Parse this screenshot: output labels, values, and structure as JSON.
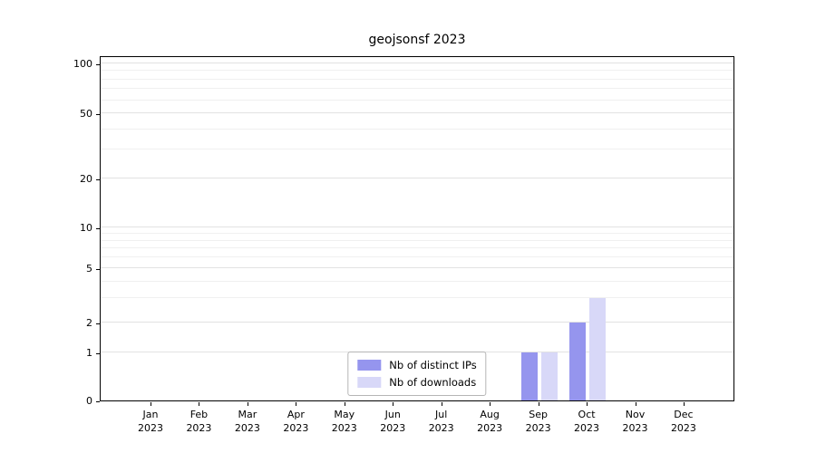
{
  "title": "geojsonsf 2023",
  "chart_data": {
    "type": "bar",
    "title": "geojsonsf 2023",
    "categories": [
      "Jan 2023",
      "Feb 2023",
      "Mar 2023",
      "Apr 2023",
      "May 2023",
      "Jun 2023",
      "Jul 2023",
      "Aug 2023",
      "Sep 2023",
      "Oct 2023",
      "Nov 2023",
      "Dec 2023"
    ],
    "series": [
      {
        "name": "Nb of distinct IPs",
        "color": "#9595ee",
        "values": [
          0,
          0,
          0,
          0,
          0,
          0,
          0,
          0,
          1,
          2,
          0,
          0
        ]
      },
      {
        "name": "Nb of downloads",
        "color": "#d8d8f8",
        "values": [
          0,
          0,
          0,
          0,
          0,
          0,
          0,
          0,
          1,
          3,
          0,
          0
        ]
      }
    ],
    "xlabel": "",
    "ylabel": "",
    "yscale": "symlog",
    "yticks": [
      0,
      1,
      2,
      5,
      10,
      20,
      50,
      100
    ],
    "ylim": [
      0,
      100
    ],
    "grid": true,
    "legend_position": "lower center"
  }
}
